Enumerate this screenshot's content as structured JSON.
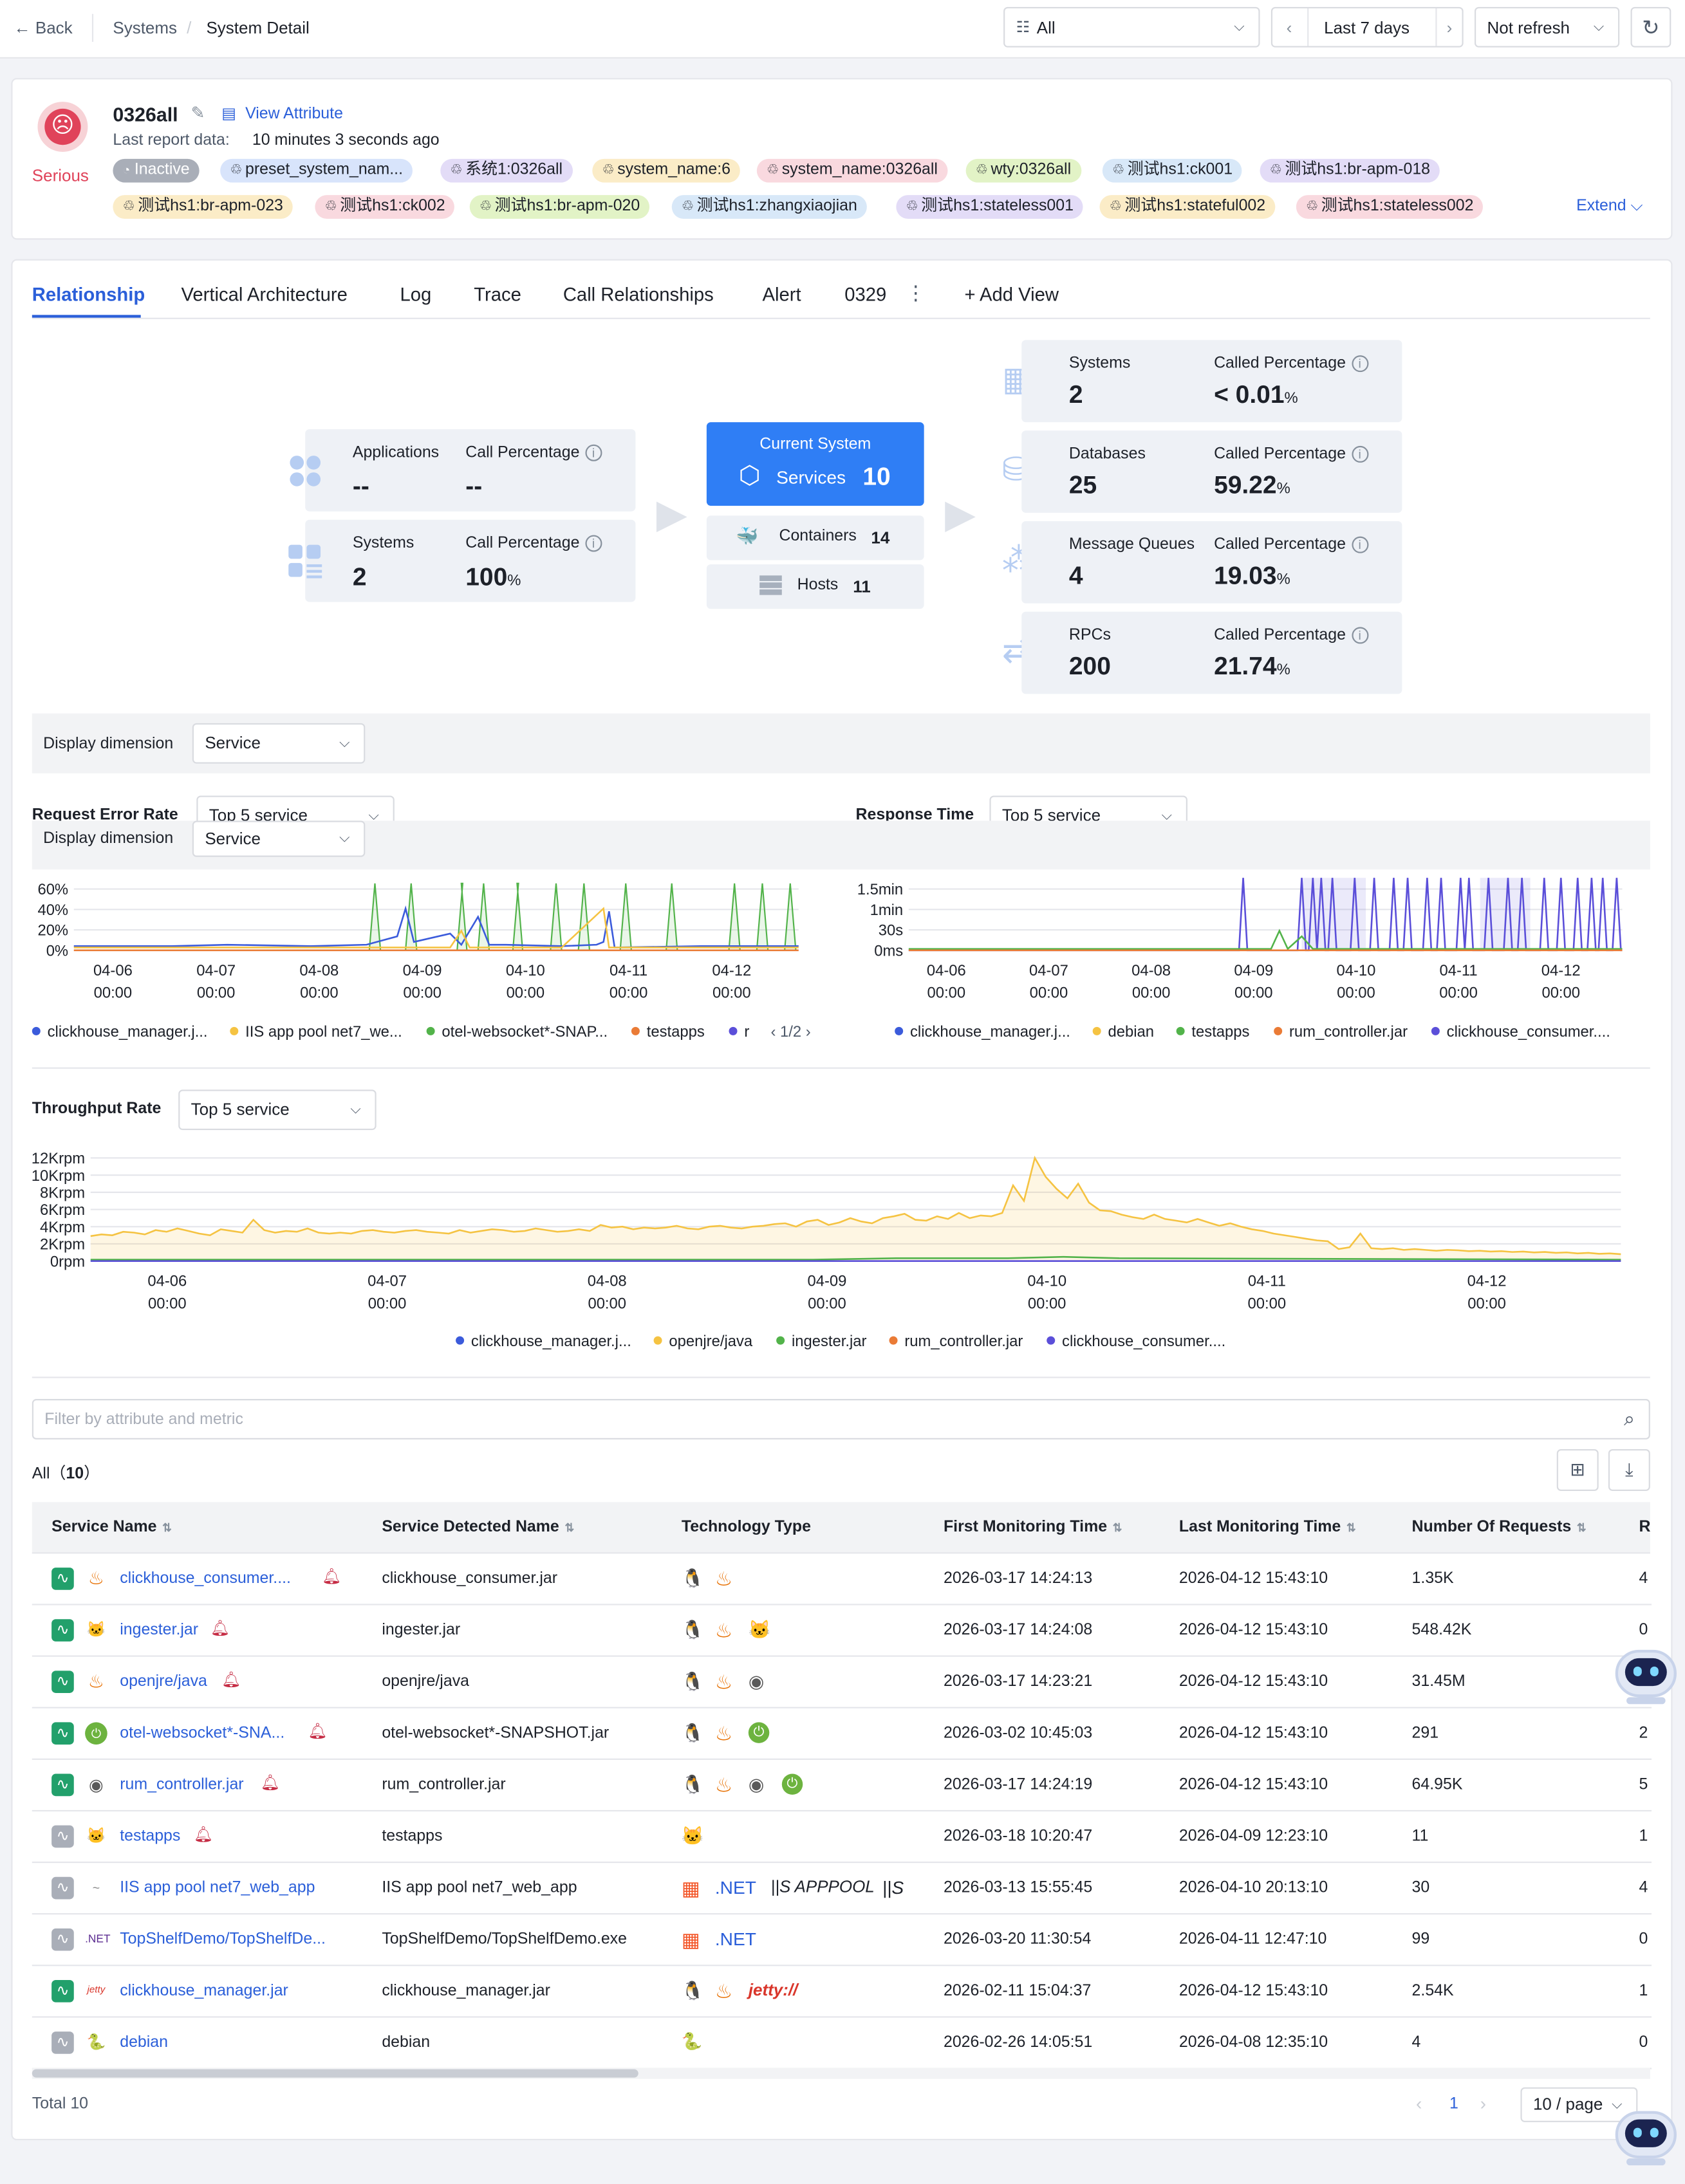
{
  "topbar": {
    "back": "Back",
    "breadcrumb_parent": "Systems",
    "breadcrumb_sep": "/",
    "breadcrumb_current": "System Detail",
    "filter_all": "All",
    "time_range": "Last 7 days",
    "refresh": "Not refresh"
  },
  "system": {
    "status": "Serious",
    "name": "0326all",
    "view_attribute": "View Attribute",
    "last_report_label": "Last report data:",
    "last_report_value": "10 minutes 3 seconds ago",
    "extend": "Extend",
    "tags_row1": [
      {
        "text": "Inactive",
        "bg": "#a9aeb8",
        "fg": "#ffffff"
      },
      {
        "text": "preset_system_nam...",
        "bg": "#d8e4fb"
      },
      {
        "text": "系统1:0326all",
        "bg": "#e3dcf7"
      },
      {
        "text": "system_name:6",
        "bg": "#fbecc7"
      },
      {
        "text": "system_name:0326all",
        "bg": "#f9d9df"
      },
      {
        "text": "wty:0326all",
        "bg": "#e2f3c6"
      },
      {
        "text": "测试hs1:ck001",
        "bg": "#d8e8f8"
      },
      {
        "text": "测试hs1:br-apm-018",
        "bg": "#e3dcf7"
      }
    ],
    "tags_row2": [
      {
        "text": "测试hs1:br-apm-023",
        "bg": "#fbecc7"
      },
      {
        "text": "测试hs1:ck002",
        "bg": "#f9d9df"
      },
      {
        "text": "测试hs1:br-apm-020",
        "bg": "#e2f3c6"
      },
      {
        "text": "测试hs1:zhangxiaojian",
        "bg": "#d8e8f8"
      },
      {
        "text": "测试hs1:stateless001",
        "bg": "#e3dcf7"
      },
      {
        "text": "测试hs1:stateful002",
        "bg": "#fbecc7"
      },
      {
        "text": "测试hs1:stateless002",
        "bg": "#f9d9df"
      }
    ]
  },
  "tabs": [
    "Relationship",
    "Vertical Architecture",
    "Log",
    "Trace",
    "Call Relationships",
    "Alert",
    "0329"
  ],
  "add_view": "+ Add View",
  "relationship": {
    "left": [
      {
        "label": "Applications",
        "value": "--",
        "pct_label": "Call Percentage",
        "pct": "--",
        "unit": ""
      },
      {
        "label": "Systems",
        "value": "2",
        "pct_label": "Call Percentage",
        "pct": "100",
        "unit": "%"
      }
    ],
    "center": {
      "title": "Current System",
      "services_label": "Services",
      "services": "10",
      "containers_label": "Containers",
      "containers": "14",
      "hosts_label": "Hosts",
      "hosts": "11"
    },
    "right": [
      {
        "label": "Systems",
        "value": "2",
        "pct_label": "Called Percentage",
        "pct": "< 0.01",
        "unit": "%"
      },
      {
        "label": "Databases",
        "value": "25",
        "pct_label": "Called Percentage",
        "pct": "59.22",
        "unit": "%"
      },
      {
        "label": "Message Queues",
        "value": "4",
        "pct_label": "Called Percentage",
        "pct": "19.03",
        "unit": "%"
      },
      {
        "label": "RPCs",
        "value": "200",
        "pct_label": "Called Percentage",
        "pct": "21.74",
        "unit": "%"
      }
    ]
  },
  "display_dimension": {
    "label": "Display dimension",
    "value": "Service"
  },
  "charts": {
    "error_title": "Request Error Rate",
    "response_title": "Response Time",
    "throughput_title": "Throughput Rate",
    "top5": "Top 5 service",
    "pager": "1/2"
  },
  "chart_data": [
    {
      "type": "line",
      "title": "Request Error Rate",
      "x": [
        "04-06 00:00",
        "04-07 00:00",
        "04-08 00:00",
        "04-09 00:00",
        "04-10 00:00",
        "04-11 00:00",
        "04-12 00:00"
      ],
      "yticks": [
        "60%",
        "40%",
        "20%",
        "0%"
      ],
      "ylim": [
        0,
        60
      ],
      "series": [
        {
          "name": "clickhouse_manager.j...",
          "color": "#3b5bdb"
        },
        {
          "name": "IIS app pool net7_we...",
          "color": "#f5c342"
        },
        {
          "name": "otel-websocket*-SNAP...",
          "color": "#52b34a"
        },
        {
          "name": "testapps",
          "color": "#ea7b36"
        },
        {
          "name": "r",
          "color": "#5b4fd9"
        }
      ]
    },
    {
      "type": "line",
      "title": "Response Time",
      "x": [
        "04-06 00:00",
        "04-07 00:00",
        "04-08 00:00",
        "04-09 00:00",
        "04-10 00:00",
        "04-11 00:00",
        "04-12 00:00"
      ],
      "yticks": [
        "1.5min",
        "1min",
        "30s",
        "0ms"
      ],
      "series": [
        {
          "name": "clickhouse_manager.j...",
          "color": "#3b5bdb"
        },
        {
          "name": "debian",
          "color": "#f5c342"
        },
        {
          "name": "testapps",
          "color": "#52b34a"
        },
        {
          "name": "rum_controller.jar",
          "color": "#ea7b36"
        },
        {
          "name": "clickhouse_consumer....",
          "color": "#5b4fd9"
        }
      ]
    },
    {
      "type": "area",
      "title": "Throughput Rate",
      "x": [
        "04-06 00:00",
        "04-07 00:00",
        "04-08 00:00",
        "04-09 00:00",
        "04-10 00:00",
        "04-11 00:00",
        "04-12 00:00"
      ],
      "yticks": [
        "12Krpm",
        "10Krpm",
        "8Krpm",
        "6Krpm",
        "4Krpm",
        "2Krpm",
        "0rpm"
      ],
      "ylim": [
        0,
        12000
      ],
      "series": [
        {
          "name": "clickhouse_manager.j...",
          "color": "#3b5bdb"
        },
        {
          "name": "openjre/java",
          "color": "#f5c342"
        },
        {
          "name": "ingester.jar",
          "color": "#52b34a"
        },
        {
          "name": "rum_controller.jar",
          "color": "#ea7b36"
        },
        {
          "name": "clickhouse_consumer....",
          "color": "#5b4fd9"
        }
      ]
    }
  ],
  "filter_placeholder": "Filter by attribute and metric",
  "table": {
    "all_label": "All",
    "count": "10",
    "headers": [
      "Service Name",
      "Service Detected Name",
      "Technology Type",
      "First Monitoring Time",
      "Last Monitoring Time",
      "Number Of Requests",
      "R"
    ],
    "rows": [
      {
        "name": "clickhouse_consumer....",
        "detected": "clickhouse_consumer.jar",
        "first": "2026-03-17 14:24:13",
        "last": "2026-04-12 15:43:10",
        "requests": "1.35K",
        "r": "4",
        "active": true,
        "bell": true,
        "icon": "java-icon",
        "tech": [
          "linux-icon",
          "java-icon"
        ]
      },
      {
        "name": "ingester.jar",
        "detected": "ingester.jar",
        "first": "2026-03-17 14:24:08",
        "last": "2026-04-12 15:43:10",
        "requests": "548.42K",
        "r": "0",
        "active": true,
        "bell": true,
        "icon": "tomcat-icon",
        "tech": [
          "linux-icon",
          "java-icon",
          "tomcat-icon"
        ]
      },
      {
        "name": "openjre/java",
        "detected": "openjre/java",
        "first": "2026-03-17 14:23:21",
        "last": "2026-04-12 15:43:10",
        "requests": "31.45M",
        "r": "",
        "active": true,
        "bell": true,
        "icon": "java-icon",
        "tech": [
          "linux-icon",
          "java-icon",
          "openjre-icon"
        ]
      },
      {
        "name": "otel-websocket*-SNA...",
        "detected": "otel-websocket*-SNAPSHOT.jar",
        "first": "2026-03-02 10:45:03",
        "last": "2026-04-12 15:43:10",
        "requests": "291",
        "r": "2",
        "active": true,
        "bell": true,
        "icon": "spring-icon",
        "tech": [
          "linux-icon",
          "java-icon",
          "spring-icon"
        ]
      },
      {
        "name": "rum_controller.jar",
        "detected": "rum_controller.jar",
        "first": "2026-03-17 14:24:19",
        "last": "2026-04-12 15:43:10",
        "requests": "64.95K",
        "r": "5",
        "active": true,
        "bell": true,
        "icon": "openjre-icon",
        "tech": [
          "linux-icon",
          "java-icon",
          "openjre-icon",
          "spring-icon"
        ]
      },
      {
        "name": "testapps",
        "detected": "testapps",
        "first": "2026-03-18 10:20:47",
        "last": "2026-04-09 12:23:10",
        "requests": "11",
        "r": "1",
        "active": false,
        "bell": true,
        "icon": "tomcat-icon",
        "tech": [
          "tomcat-icon"
        ]
      },
      {
        "name": "IIS app pool net7_web_app",
        "detected": "IIS app pool net7_web_app",
        "first": "2026-03-13 15:55:45",
        "last": "2026-04-10 20:13:10",
        "requests": "30",
        "r": "4",
        "active": false,
        "bell": false,
        "icon": "iis-icon",
        "tech": [
          "windows-icon",
          "dotnet-icon",
          "iis-apppool-icon",
          "iis-icon"
        ]
      },
      {
        "name": "TopShelfDemo/TopShelfDe...",
        "detected": "TopShelfDemo/TopShelfDemo.exe",
        "first": "2026-03-20 11:30:54",
        "last": "2026-04-11 12:47:10",
        "requests": "99",
        "r": "0",
        "active": false,
        "bell": false,
        "icon": "dotnet-icon",
        "tech": [
          "windows-icon",
          "dotnet-icon"
        ]
      },
      {
        "name": "clickhouse_manager.jar",
        "detected": "clickhouse_manager.jar",
        "first": "2026-02-11 15:04:37",
        "last": "2026-04-12 15:43:10",
        "requests": "2.54K",
        "r": "1",
        "active": true,
        "bell": false,
        "icon": "jetty-icon",
        "tech": [
          "linux-icon",
          "java-icon",
          "jetty-icon"
        ]
      },
      {
        "name": "debian",
        "detected": "debian",
        "first": "2026-02-26 14:05:51",
        "last": "2026-04-08 12:35:10",
        "requests": "4",
        "r": "0",
        "active": false,
        "bell": false,
        "icon": "python-icon",
        "tech": [
          "python-icon"
        ]
      }
    ],
    "tech_text": {
      "dotnet": ".NET",
      "apppool": "APPPOOL",
      "iis": "IIS",
      "jetty": "jetty://",
      "net_small": ".NET"
    },
    "total_label": "Total 10",
    "page": "1",
    "page_size": "10 / page"
  }
}
